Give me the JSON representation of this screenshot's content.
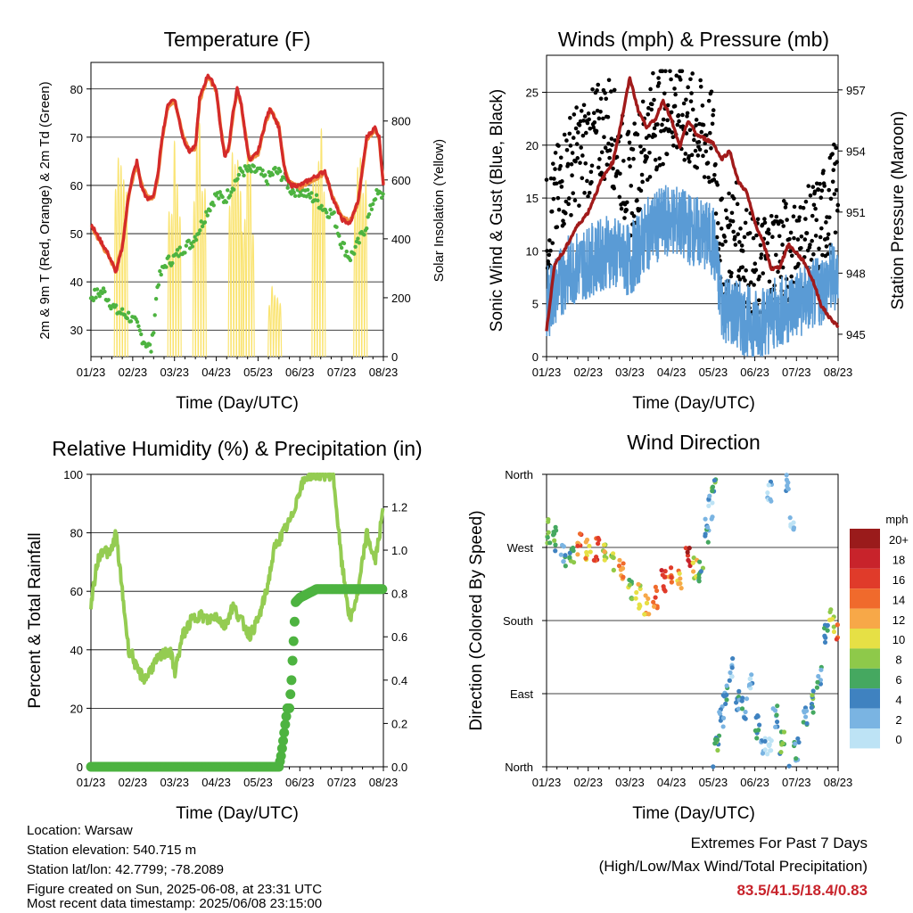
{
  "chart_data": [
    {
      "id": "temperature",
      "type": "line",
      "title": "Temperature (F)",
      "xlabel": "Time (Day/UTC)",
      "ylabel": "2m & 9m T (Red, Orange) & 2m Td (Green)",
      "ylabel_right": "Solar Insolation (Yellow)",
      "x_ticks": [
        "01/23",
        "02/23",
        "03/23",
        "04/23",
        "05/23",
        "06/23",
        "07/23",
        "08/23"
      ],
      "ylim": [
        24.5,
        85.5
      ],
      "y_ticks": [
        30,
        40,
        50,
        60,
        70,
        80
      ],
      "ylim_right": [
        0,
        999
      ],
      "y_ticks_right": [
        0,
        200,
        400,
        600,
        800
      ],
      "grid": "horizontal",
      "series": [
        {
          "role": "2m T",
          "color": "#d42a2a",
          "style": "thick-line",
          "x": [
            0,
            0.2,
            0.4,
            0.6,
            0.75,
            0.9,
            1.0,
            1.1,
            1.2,
            1.35,
            1.5,
            1.6,
            1.7,
            1.85,
            2.0,
            2.2,
            2.35,
            2.5,
            2.6,
            2.8,
            3.0,
            3.1,
            3.2,
            3.3,
            3.4,
            3.5,
            3.6,
            3.7,
            3.8,
            4.0,
            4.2,
            4.3,
            4.5,
            4.6,
            4.7,
            4.8,
            5.0,
            5.2,
            5.4,
            5.6,
            5.8,
            6.0,
            6.2,
            6.4,
            6.6,
            6.8,
            6.9,
            7.0
          ],
          "y": [
            52,
            49,
            46,
            42,
            47,
            58,
            62,
            65,
            60,
            57,
            58,
            62,
            70,
            77,
            78,
            70,
            67,
            68,
            78,
            83,
            80,
            72,
            66,
            68,
            75,
            80,
            77,
            70,
            65,
            67,
            74,
            76,
            72,
            65,
            61,
            60,
            60,
            61,
            62,
            63,
            57,
            53,
            52,
            57,
            70,
            72,
            70,
            60
          ]
        },
        {
          "role": "9m T",
          "color": "#f08c3c",
          "style": "thick-line",
          "x": [
            0,
            0.2,
            0.4,
            0.6,
            0.75,
            0.9,
            1.0,
            1.1,
            1.2,
            1.35,
            1.5,
            1.6,
            1.7,
            1.85,
            2.0,
            2.2,
            2.35,
            2.5,
            2.6,
            2.8,
            3.0,
            3.1,
            3.2,
            3.3,
            3.4,
            3.5,
            3.6,
            3.7,
            3.8,
            4.0,
            4.2,
            4.3,
            4.5,
            4.6,
            4.7,
            4.8,
            5.0,
            5.2,
            5.4,
            5.6,
            5.8,
            6.0,
            6.2,
            6.4,
            6.6,
            6.8,
            6.9,
            7.0
          ],
          "y": [
            51.6,
            48.6,
            45.6,
            42.4,
            47.4,
            57.6,
            61.6,
            64.6,
            60.4,
            57.4,
            57.6,
            61.6,
            69.6,
            76.6,
            77.6,
            70.4,
            67.4,
            67.6,
            77.6,
            82.6,
            79.6,
            72.4,
            66.4,
            67.6,
            74.6,
            79.6,
            76.6,
            70.4,
            65.4,
            66.6,
            73.6,
            75.6,
            72.4,
            65.4,
            61.4,
            60.4,
            59.6,
            60.6,
            61.6,
            62.6,
            57.4,
            53.4,
            52.4,
            56.6,
            69.6,
            71.6,
            69.6,
            60.4
          ]
        },
        {
          "role": "2m Td",
          "color": "#4db340",
          "style": "dots",
          "x": [
            0,
            0.3,
            0.6,
            0.9,
            1.1,
            1.25,
            1.45,
            1.6,
            1.8,
            2.0,
            2.2,
            2.4,
            2.6,
            2.8,
            3.0,
            3.2,
            3.4,
            3.6,
            3.8,
            4.0,
            4.2,
            4.4,
            4.6,
            4.8,
            5.0,
            5.2,
            5.4,
            5.6,
            5.8,
            6.0,
            6.2,
            6.4,
            6.6,
            6.8,
            7.0
          ],
          "y": [
            37,
            38,
            34,
            33,
            31,
            28,
            26,
            40,
            44,
            45,
            47,
            48,
            51,
            55,
            58,
            57,
            60,
            63,
            63,
            63,
            61,
            63,
            62,
            59,
            59,
            58,
            57,
            55,
            54,
            48,
            45,
            48,
            52,
            58,
            58
          ]
        },
        {
          "role": "Solar Insolation",
          "color": "#fae164",
          "style": "thin-line",
          "axis": "right",
          "day_peaks": [
            930,
            0,
            800,
            930,
            920,
            780,
            290,
            930,
            0,
            890
          ],
          "peak_x": [
            0.72,
            1.0,
            2.0,
            2.6,
            3.45,
            3.75,
            4.4,
            5.45,
            6.0,
            6.45
          ]
        }
      ]
    },
    {
      "id": "winds",
      "type": "line",
      "title": "Winds (mph) & Pressure (mb)",
      "xlabel": "Time (Day/UTC)",
      "ylabel": "Sonic Wind & Gust (Blue, Black)",
      "ylabel_right": "Station Pressure (Maroon)",
      "x_ticks": [
        "01/23",
        "02/23",
        "03/23",
        "04/23",
        "05/23",
        "06/23",
        "07/23",
        "08/23"
      ],
      "ylim": [
        0,
        28.5
      ],
      "y_ticks": [
        0,
        5,
        10,
        15,
        20,
        25
      ],
      "ylim_right": [
        943.9,
        958.7
      ],
      "y_ticks_right": [
        945,
        948,
        951,
        954,
        957
      ],
      "grid": "horizontal",
      "series": [
        {
          "role": "Sonic Wind",
          "color": "#5a9bd5",
          "style": "dense-line",
          "x": [
            0,
            0.5,
            1.0,
            1.5,
            2.0,
            2.5,
            3.0,
            3.5,
            4.0,
            4.2,
            4.5,
            5.0,
            5.5,
            6.0,
            6.5,
            7.0
          ],
          "y": [
            5,
            8,
            9,
            10,
            9,
            12,
            13,
            12,
            11,
            5,
            4,
            3,
            4,
            5,
            6,
            8
          ]
        },
        {
          "role": "Gust",
          "color": "#000000",
          "style": "dots",
          "x": [
            0,
            0.5,
            1.0,
            1.5,
            2.0,
            2.5,
            3.0,
            3.5,
            4.0,
            4.2,
            4.5,
            5.0,
            5.5,
            6.0,
            6.5,
            7.0
          ],
          "y": [
            12,
            18,
            20,
            22,
            16,
            22,
            24,
            22,
            20,
            10,
            12,
            8,
            10,
            10,
            12,
            16
          ]
        },
        {
          "role": "Station Pressure",
          "color": "#a11a1a",
          "style": "thick-line",
          "axis": "right",
          "x": [
            0,
            0.2,
            0.4,
            0.7,
            1.0,
            1.3,
            1.6,
            1.8,
            2.0,
            2.2,
            2.4,
            2.6,
            2.8,
            3.0,
            3.2,
            3.4,
            3.6,
            3.8,
            4.0,
            4.2,
            4.4,
            4.6,
            4.8,
            5.0,
            5.2,
            5.4,
            5.6,
            5.8,
            6.0,
            6.2,
            6.4,
            6.6,
            6.8,
            7.0
          ],
          "y": [
            945.2,
            948.5,
            949.0,
            950.2,
            951.0,
            952.5,
            953.5,
            955.5,
            957.6,
            956.0,
            955.2,
            955.5,
            956.5,
            955.5,
            954.2,
            955.5,
            954.8,
            954.6,
            954.4,
            953.6,
            954.0,
            952.5,
            952.0,
            950.5,
            949.5,
            948.2,
            948.3,
            949.4,
            949.0,
            948.5,
            947.6,
            946.4,
            945.8,
            945.4
          ]
        }
      ]
    },
    {
      "id": "humidity",
      "type": "line",
      "title": "Relative Humidity (%) & Precipitation (in)",
      "xlabel": "Time (Day/UTC)",
      "ylabel": "Percent & Total Rainfall",
      "x_ticks": [
        "01/23",
        "02/23",
        "03/23",
        "04/23",
        "05/23",
        "06/23",
        "07/23",
        "08/23"
      ],
      "ylim": [
        0,
        100
      ],
      "y_ticks": [
        0,
        20,
        40,
        60,
        80,
        100
      ],
      "ylim_right": [
        0,
        1.35
      ],
      "y_ticks_right": [
        "0.0",
        "0.2",
        "0.4",
        "0.6",
        "0.8",
        "1.0",
        "1.2"
      ],
      "grid": "horizontal",
      "series": [
        {
          "role": "Relative Humidity",
          "color": "#94cc52",
          "style": "thick-line",
          "x": [
            0,
            0.15,
            0.3,
            0.45,
            0.6,
            0.75,
            0.9,
            1.0,
            1.1,
            1.3,
            1.5,
            1.7,
            1.9,
            2.0,
            2.2,
            2.4,
            2.6,
            2.8,
            3.0,
            3.2,
            3.4,
            3.6,
            3.8,
            4.0,
            4.2,
            4.4,
            4.6,
            4.8,
            5.0,
            5.2,
            5.4,
            5.6,
            5.8,
            6.0,
            6.2,
            6.4,
            6.6,
            6.8,
            7.0
          ],
          "y": [
            55,
            70,
            75,
            72,
            80,
            60,
            40,
            38,
            33,
            30,
            35,
            38,
            40,
            32,
            45,
            50,
            52,
            50,
            52,
            48,
            55,
            50,
            45,
            50,
            60,
            75,
            80,
            85,
            95,
            100,
            100,
            100,
            100,
            70,
            50,
            60,
            80,
            70,
            88
          ]
        },
        {
          "role": "Total Rainfall",
          "color": "#4db340",
          "style": "thick-line",
          "axis": "right",
          "x": [
            0,
            4.5,
            4.55,
            4.6,
            4.7,
            4.75,
            4.8,
            4.9,
            5.0,
            5.2,
            5.4,
            5.6,
            6.0,
            6.5,
            7.0
          ],
          "y": [
            0.0,
            0.0,
            0.05,
            0.12,
            0.27,
            0.27,
            0.4,
            0.76,
            0.78,
            0.8,
            0.82,
            0.82,
            0.82,
            0.82,
            0.82
          ]
        }
      ]
    },
    {
      "id": "wind_direction",
      "type": "scatter",
      "title": "Wind Direction",
      "xlabel": "Time (Day/UTC)",
      "ylabel": "Direction (Colored By Speed)",
      "x_ticks": [
        "01/23",
        "02/23",
        "03/23",
        "04/23",
        "05/23",
        "06/23",
        "07/23",
        "08/23"
      ],
      "y_ticks": [
        "North",
        "East",
        "South",
        "West",
        "North"
      ],
      "ylim": [
        0,
        360
      ],
      "grid": "horizontal",
      "legend": {
        "title": "mph",
        "placement": "right",
        "labels": [
          "20+",
          "18",
          "16",
          "14",
          "12",
          "10",
          "8",
          "6",
          "4",
          "2",
          "0"
        ],
        "colors": [
          "#9a1b1b",
          "#c8232b",
          "#e03b2a",
          "#f06a2c",
          "#f7a848",
          "#e6e045",
          "#8ec94a",
          "#45a860",
          "#3f82c0",
          "#7ab4e2",
          "#bde3f5"
        ]
      },
      "points": [
        {
          "x": 0.05,
          "y": 290,
          "speed": 8
        },
        {
          "x": 0.2,
          "y": 280,
          "speed": 6
        },
        {
          "x": 0.4,
          "y": 260,
          "speed": 4
        },
        {
          "x": 0.6,
          "y": 262,
          "speed": 6
        },
        {
          "x": 0.8,
          "y": 276,
          "speed": 14
        },
        {
          "x": 1.0,
          "y": 270,
          "speed": 12
        },
        {
          "x": 1.2,
          "y": 268,
          "speed": 16
        },
        {
          "x": 1.4,
          "y": 260,
          "speed": 10
        },
        {
          "x": 1.6,
          "y": 250,
          "speed": 8
        },
        {
          "x": 1.8,
          "y": 245,
          "speed": 12
        },
        {
          "x": 2.0,
          "y": 220,
          "speed": 8
        },
        {
          "x": 2.2,
          "y": 210,
          "speed": 10
        },
        {
          "x": 2.4,
          "y": 200,
          "speed": 12
        },
        {
          "x": 2.6,
          "y": 210,
          "speed": 14
        },
        {
          "x": 2.8,
          "y": 230,
          "speed": 16
        },
        {
          "x": 3.0,
          "y": 240,
          "speed": 14
        },
        {
          "x": 3.2,
          "y": 230,
          "speed": 12
        },
        {
          "x": 3.4,
          "y": 255,
          "speed": 18
        },
        {
          "x": 3.55,
          "y": 245,
          "speed": 10
        },
        {
          "x": 3.7,
          "y": 240,
          "speed": 6
        },
        {
          "x": 3.85,
          "y": 290,
          "speed": 4
        },
        {
          "x": 3.95,
          "y": 320,
          "speed": 2
        },
        {
          "x": 4.0,
          "y": 350,
          "speed": 6
        },
        {
          "x": 4.1,
          "y": 30,
          "speed": 6
        },
        {
          "x": 4.2,
          "y": 60,
          "speed": 4
        },
        {
          "x": 4.3,
          "y": 90,
          "speed": 4
        },
        {
          "x": 4.45,
          "y": 120,
          "speed": 2
        },
        {
          "x": 4.6,
          "y": 80,
          "speed": 4
        },
        {
          "x": 4.75,
          "y": 70,
          "speed": 4
        },
        {
          "x": 4.9,
          "y": 110,
          "speed": 2
        },
        {
          "x": 5.05,
          "y": 50,
          "speed": 4
        },
        {
          "x": 5.2,
          "y": 30,
          "speed": 2
        },
        {
          "x": 5.35,
          "y": 20,
          "speed": 0
        },
        {
          "x": 5.35,
          "y": 340,
          "speed": 2
        },
        {
          "x": 5.5,
          "y": 60,
          "speed": 4
        },
        {
          "x": 5.65,
          "y": 30,
          "speed": 6
        },
        {
          "x": 5.8,
          "y": 350,
          "speed": 2
        },
        {
          "x": 5.9,
          "y": 300,
          "speed": 0
        },
        {
          "x": 6.0,
          "y": 20,
          "speed": 4
        },
        {
          "x": 6.2,
          "y": 60,
          "speed": 4
        },
        {
          "x": 6.4,
          "y": 80,
          "speed": 6
        },
        {
          "x": 6.55,
          "y": 110,
          "speed": 4
        },
        {
          "x": 6.7,
          "y": 160,
          "speed": 4
        },
        {
          "x": 6.85,
          "y": 180,
          "speed": 10
        },
        {
          "x": 7.0,
          "y": 170,
          "speed": 14
        }
      ]
    }
  ],
  "info": {
    "location": "Location: Warsaw",
    "elevation": "Station elevation: 540.715 m",
    "latlon": "Station lat/lon: 42.7799; -78.2089",
    "created": "Figure created on Sun, 2025-06-08, at 23:31 UTC",
    "recent": "Most recent data timestamp: 2025/06/08 23:15:00"
  },
  "extremes": {
    "title": "Extremes For Past 7 Days",
    "subtitle": "(High/Low/Max Wind/Total Precipitation)",
    "values": "83.5/41.5/18.4/0.83",
    "values_color": "#c8232b"
  }
}
